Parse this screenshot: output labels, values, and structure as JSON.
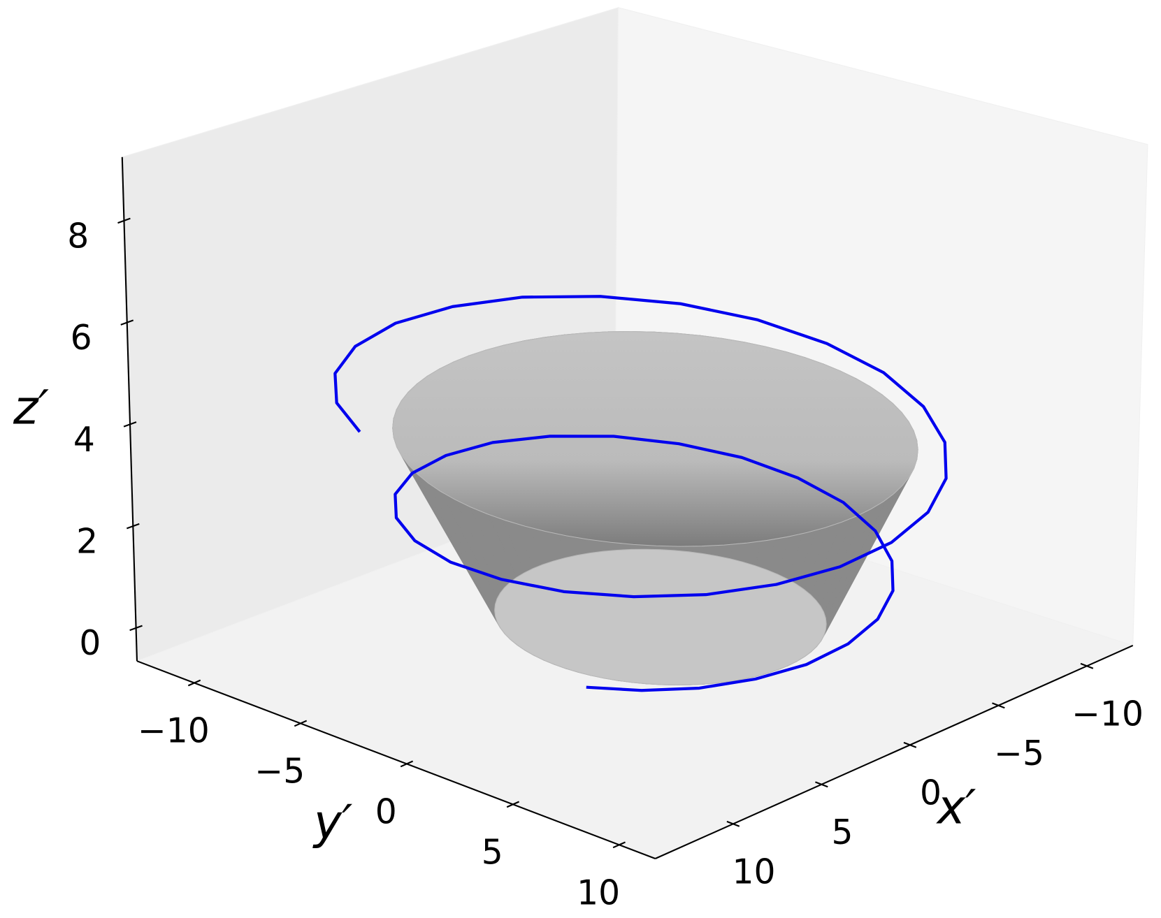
{
  "chart_data": {
    "type": "line3d",
    "x_label": "x′",
    "y_label": "y′",
    "z_label": "z′",
    "xlim": [
      -12.6,
      14.4
    ],
    "ylim": [
      -12.7,
      11.7
    ],
    "zlim": [
      -0.65,
      9.25
    ],
    "xticks": [
      {
        "value": -10,
        "label": "−10"
      },
      {
        "value": -5,
        "label": "−5"
      },
      0,
      5,
      10
    ],
    "yticks": [
      {
        "value": -10,
        "label": "−10"
      },
      {
        "value": -5,
        "label": "−5"
      },
      0,
      5,
      10
    ],
    "zticks": [
      0,
      2,
      4,
      6,
      8
    ],
    "grid": false,
    "surface": {
      "r": [
        6.0,
        9.5
      ],
      "z": [
        0,
        3.5
      ],
      "color": "#8a8a8a"
    },
    "series": [
      {
        "color": "#0000ee",
        "x": [
          10.65,
          8.93,
          6.65,
          3.93,
          0.99,
          -1.97,
          -4.75,
          -7.17,
          -9.07,
          -10.32,
          -10.85,
          -10.65,
          -9.71,
          -8.14,
          -6.05,
          -3.58,
          -0.9,
          1.79,
          4.31,
          6.5,
          8.21,
          9.34,
          9.82,
          9.62,
          8.78,
          7.35,
          5.46,
          3.23,
          0.81,
          -1.61,
          -3.88,
          -5.84,
          -7.37,
          -8.38,
          -8.79,
          -8.61,
          -7.84,
          -6.56,
          -4.87,
          -2.87,
          -0.72,
          1.43,
          3.44,
          5.18,
          6.53,
          7.41
        ],
        "y": [
          -4.97,
          -7.5,
          -9.48,
          -10.8,
          -11.36,
          -11.15,
          -10.18,
          -8.54,
          -6.35,
          -3.76,
          -0.95,
          1.88,
          4.53,
          6.84,
          8.63,
          9.83,
          10.33,
          10.14,
          9.24,
          7.74,
          5.76,
          3.4,
          0.86,
          -1.7,
          -4.1,
          -6.17,
          -7.8,
          -8.86,
          -9.3,
          -9.12,
          -8.31,
          -6.96,
          -5.17,
          -3.05,
          -0.77,
          1.52,
          3.66,
          5.5,
          6.95,
          7.89,
          8.28,
          8.1,
          7.37,
          6.17,
          4.57,
          2.69
        ],
        "z": [
          4.5,
          4.4,
          4.31,
          4.21,
          4.12,
          4.02,
          3.93,
          3.83,
          3.74,
          3.64,
          3.54,
          3.45,
          3.35,
          3.26,
          3.16,
          3.07,
          2.97,
          2.88,
          2.78,
          2.68,
          2.59,
          2.49,
          2.4,
          2.3,
          2.21,
          2.11,
          2.02,
          1.92,
          1.82,
          1.73,
          1.63,
          1.54,
          1.44,
          1.35,
          1.25,
          1.16,
          1.06,
          0.96,
          0.87,
          0.77,
          0.68,
          0.58,
          0.49,
          0.39,
          0.3,
          0.2
        ]
      }
    ]
  }
}
